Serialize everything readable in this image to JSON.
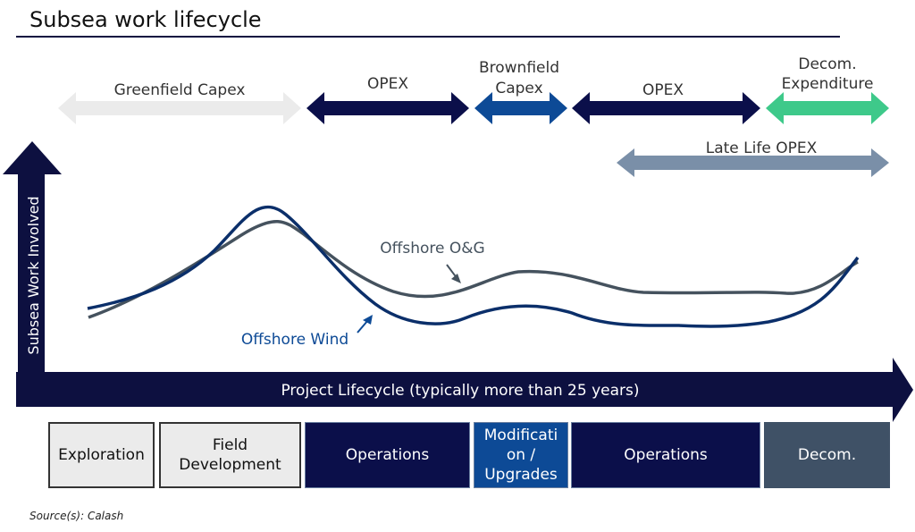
{
  "title": "Subsea work lifecycle",
  "colors": {
    "navy": "#0d1040",
    "dark_navy": "#0b0f4a",
    "royal_blue": "#0d4a96",
    "light_gray": "#ebebeb",
    "slate": "#7a8fa8",
    "green": "#3ec98a",
    "charcoal": "#3f5166",
    "wind_line": "#0b2f6a",
    "og_line": "#45525e"
  },
  "spending_arrows": [
    {
      "label": "Greenfield Capex"
    },
    {
      "label": "OPEX"
    },
    {
      "label_line1": "Brownfield",
      "label_line2": "Capex"
    },
    {
      "label": "OPEX"
    },
    {
      "label_line1": "Decom.",
      "label_line2": "Expenditure"
    },
    {
      "label": "Late Life OPEX"
    }
  ],
  "axes": {
    "y_label": "Subsea Work Involved",
    "x_label": "Project Lifecycle (typically more than 25 years)"
  },
  "curves": {
    "offshore_og": "Offshore O&G",
    "offshore_wind": "Offshore Wind"
  },
  "phases": [
    {
      "label": "Exploration"
    },
    {
      "label": "Field\nDevelopment"
    },
    {
      "label": "Operations"
    },
    {
      "label": "Modificati\non /\nUpgrades"
    },
    {
      "label": "Operations"
    },
    {
      "label": "Decom."
    }
  ],
  "source": "Source(s): Calash"
}
